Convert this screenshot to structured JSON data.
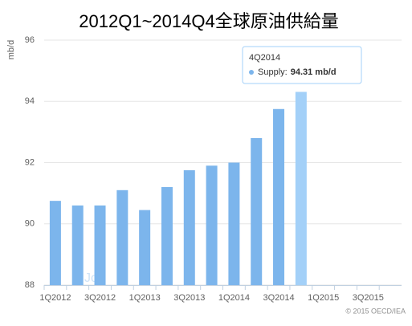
{
  "chart_data": {
    "type": "bar",
    "title": "2012Q1~2014Q4全球原油供給量",
    "y_label": "mb/d",
    "categories": [
      "1Q2012",
      null,
      "3Q2012",
      null,
      "1Q2013",
      null,
      "3Q2013",
      null,
      "1Q2014",
      null,
      "3Q2014",
      null,
      "1Q2015",
      null,
      "3Q2015",
      null
    ],
    "series": [
      {
        "name": "Supply",
        "color": "#7cb5ec",
        "values": [
          90.75,
          90.6,
          90.6,
          91.1,
          90.45,
          91.2,
          91.75,
          91.9,
          92.0,
          92.8,
          93.75,
          94.31,
          null,
          null,
          null,
          null
        ]
      }
    ],
    "highlight": {
      "index": 11,
      "color": "#a3d0f8"
    },
    "tooltip": {
      "title": "4Q2014",
      "label": "Supply:",
      "value_label": "94.31 mb/d"
    },
    "ylim": [
      88,
      96
    ],
    "yticks": [
      88,
      90,
      92,
      94,
      96
    ],
    "grid": true,
    "credit": "© 2015 OECD/IEA",
    "watermark": "Joe"
  }
}
